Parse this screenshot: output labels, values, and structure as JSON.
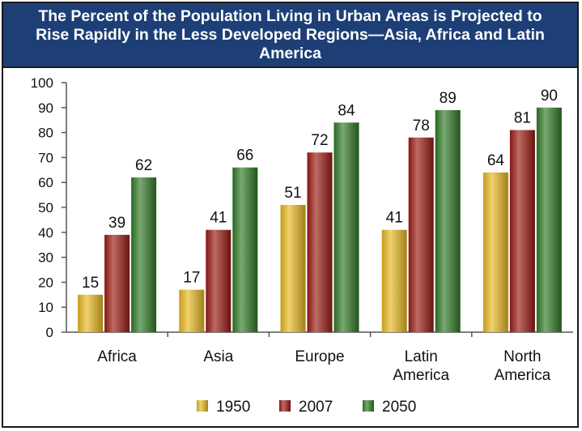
{
  "chart_data": {
    "type": "bar",
    "title": "The Percent of the Population Living in Urban Areas is Projected to Rise Rapidly in the Less Developed Regions—Asia, Africa and Latin America",
    "categories": [
      [
        "Africa"
      ],
      [
        "Asia"
      ],
      [
        "Europe"
      ],
      [
        "Latin",
        "America"
      ],
      [
        "North",
        "America"
      ]
    ],
    "series": [
      {
        "name": "1950",
        "values": [
          15,
          17,
          51,
          41,
          64
        ],
        "color": "#e8b820"
      },
      {
        "name": "2007",
        "values": [
          39,
          41,
          72,
          78,
          81
        ],
        "color": "#9b1a12"
      },
      {
        "name": "2050",
        "values": [
          62,
          66,
          84,
          89,
          90
        ],
        "color": "#2f7a24"
      }
    ],
    "yticks": [
      0,
      10,
      20,
      30,
      40,
      50,
      60,
      70,
      80,
      90,
      100
    ],
    "ylim": [
      0,
      100
    ],
    "grid": false,
    "data_labels": true,
    "legend_position": "bottom"
  }
}
